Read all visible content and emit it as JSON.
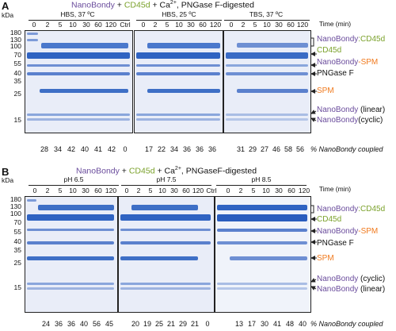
{
  "panel_a": {
    "label": "A",
    "title_parts": [
      "NanoBondy",
      " + ",
      "CD45d",
      " + Ca",
      "2+",
      ", PNGase F-digested"
    ],
    "kda": "kDa",
    "mw_markers": [
      "180",
      "130",
      "100",
      "70",
      "55",
      "40",
      "35",
      "25",
      "15"
    ],
    "conditions": [
      "HBS, 37 ºC",
      "HBS, 25 ºC",
      "TBS, 37 ºC"
    ],
    "time_label": "Time (min)",
    "gel1_lanes": [
      "0",
      "2",
      "5",
      "10",
      "30",
      "60",
      "120",
      "Ctrl"
    ],
    "gel2_lanes": [
      "0",
      "2",
      "5",
      "10",
      "30",
      "60",
      "120"
    ],
    "gel3_lanes": [
      "0",
      "2",
      "5",
      "10",
      "30",
      "60",
      "120"
    ],
    "pct_gel1": [
      "28",
      "34",
      "42",
      "40",
      "41",
      "42",
      "0"
    ],
    "pct_gel2": [
      "17",
      "22",
      "34",
      "36",
      "36",
      "36"
    ],
    "pct_gel3": [
      "31",
      "29",
      "27",
      "46",
      "58",
      "56"
    ],
    "pct_label": "% NanoBondy coupled",
    "annotations": {
      "complex_a": "NanoBondy",
      "complex_b": ":CD45d",
      "cd45d": "CD45d",
      "spm_complex_a": "NanoBondy",
      "spm_complex_b": "-SPM",
      "pngase": "PNGase F",
      "spm": "SPM",
      "linear_a": "NanoBondy",
      "linear_b": " (linear)",
      "cyclic_a": "NanoBondy",
      "cyclic_b": "(cyclic)"
    }
  },
  "panel_b": {
    "label": "B",
    "title_parts": [
      "NanoBondy",
      " + ",
      "CD45d",
      " + Ca",
      "2+",
      ", PNGaseF-digested"
    ],
    "kda": "kDa",
    "mw_markers": [
      "180",
      "130",
      "100",
      "70",
      "55",
      "40",
      "35",
      "25",
      "15"
    ],
    "conditions": [
      "pH 6.5",
      "pH 7.5",
      "pH 8.5"
    ],
    "time_label": "Time (min)",
    "gel1_lanes": [
      "0",
      "2",
      "5",
      "10",
      "30",
      "60",
      "120"
    ],
    "gel2_lanes": [
      "0",
      "2",
      "5",
      "10",
      "30",
      "60",
      "120",
      "Ctrl"
    ],
    "gel3_lanes": [
      "0",
      "2",
      "5",
      "10",
      "30",
      "60",
      "120"
    ],
    "pct_gel1": [
      "24",
      "36",
      "36",
      "40",
      "56",
      "45"
    ],
    "pct_gel2": [
      "20",
      "19",
      "25",
      "21",
      "29",
      "21",
      "0"
    ],
    "pct_gel3": [
      "13",
      "17",
      "30",
      "41",
      "48",
      "40"
    ],
    "pct_label": "% NanoBondy coupled",
    "annotations": {
      "complex_a": "NanoBondy",
      "complex_b": ":CD45d",
      "cd45d": "CD45d",
      "spm_complex_a": "NanoBondy",
      "spm_complex_b": "-SPM",
      "pngase": "PNGase F",
      "spm": "SPM",
      "cyclic_a": "NanoBondy",
      "cyclic_b": " (cyclic)",
      "linear_a": "NanoBondy",
      "linear_b": " (linear)"
    }
  },
  "colors": {
    "purple": "#6a4c9c",
    "green": "#7aa12a",
    "orange": "#f07a1e",
    "band": "#3e6fc6"
  }
}
